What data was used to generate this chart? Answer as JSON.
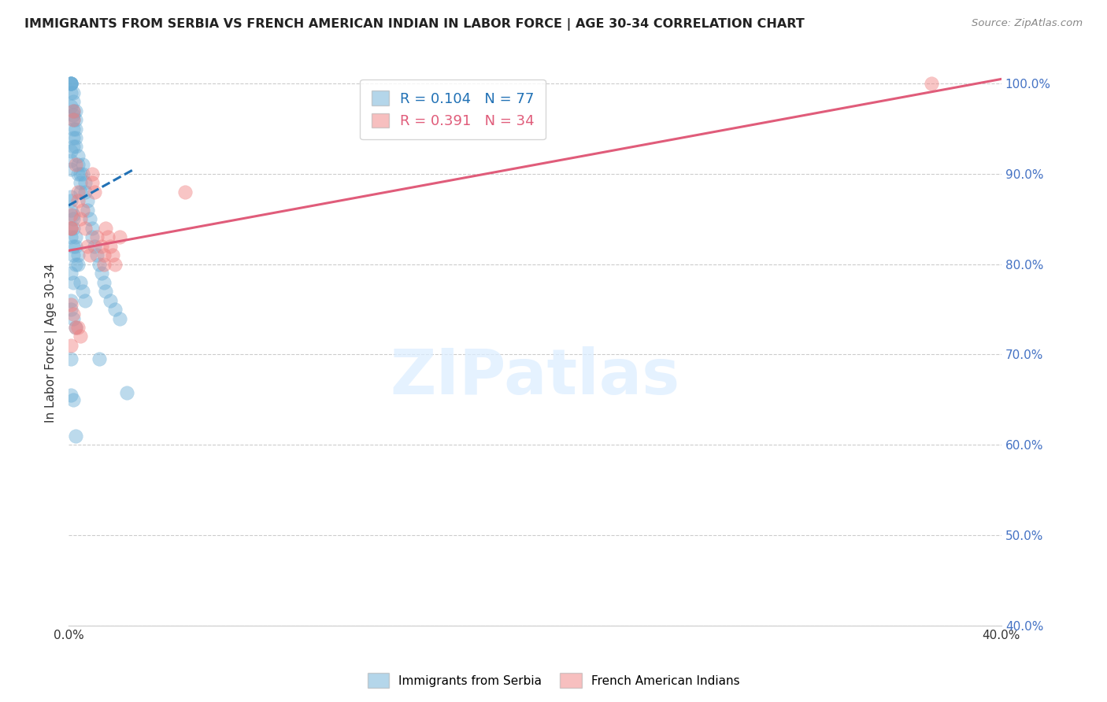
{
  "title": "IMMIGRANTS FROM SERBIA VS FRENCH AMERICAN INDIAN IN LABOR FORCE | AGE 30-34 CORRELATION CHART",
  "source": "Source: ZipAtlas.com",
  "ylabel": "In Labor Force | Age 30-34",
  "blue_label": "Immigrants from Serbia",
  "pink_label": "French American Indians",
  "blue_R": 0.104,
  "blue_N": 77,
  "pink_R": 0.391,
  "pink_N": 34,
  "blue_color": "#6baed6",
  "pink_color": "#f08080",
  "blue_line_color": "#2171b5",
  "pink_line_color": "#e05c7a",
  "xmin": 0.0,
  "xmax": 0.4,
  "ymin": 0.4,
  "ymax": 1.025,
  "blue_line_x0": 0.0,
  "blue_line_y0": 0.865,
  "blue_line_x1": 0.028,
  "blue_line_y1": 0.905,
  "pink_line_x0": 0.0,
  "pink_line_y0": 0.815,
  "pink_line_x1": 0.4,
  "pink_line_y1": 1.005,
  "watermark": "ZIPatlas",
  "ytick_color": "#4472c4",
  "grid_color": "#cccccc",
  "blue_scatter_x": [
    0.001,
    0.001,
    0.001,
    0.001,
    0.001,
    0.001,
    0.002,
    0.002,
    0.002,
    0.002,
    0.002,
    0.002,
    0.002,
    0.003,
    0.003,
    0.003,
    0.003,
    0.003,
    0.004,
    0.004,
    0.004,
    0.005,
    0.005,
    0.005,
    0.006,
    0.006,
    0.007,
    0.007,
    0.008,
    0.008,
    0.009,
    0.01,
    0.01,
    0.011,
    0.012,
    0.013,
    0.014,
    0.015,
    0.016,
    0.018,
    0.02,
    0.022,
    0.001,
    0.001,
    0.002,
    0.002,
    0.003,
    0.003,
    0.004,
    0.004,
    0.005,
    0.006,
    0.007,
    0.001,
    0.001,
    0.002,
    0.003,
    0.001,
    0.001,
    0.002,
    0.002,
    0.003,
    0.001,
    0.002,
    0.001,
    0.001,
    0.002,
    0.013,
    0.025,
    0.003,
    0.001,
    0.002,
    0.001,
    0.002,
    0.001,
    0.001,
    0.001
  ],
  "blue_scatter_y": [
    1.0,
    1.0,
    1.0,
    1.0,
    1.0,
    0.99,
    0.99,
    0.98,
    0.97,
    0.96,
    0.95,
    0.94,
    0.93,
    0.97,
    0.96,
    0.95,
    0.94,
    0.93,
    0.92,
    0.91,
    0.9,
    0.9,
    0.89,
    0.88,
    0.91,
    0.9,
    0.89,
    0.88,
    0.87,
    0.86,
    0.85,
    0.84,
    0.83,
    0.82,
    0.81,
    0.8,
    0.79,
    0.78,
    0.77,
    0.76,
    0.75,
    0.74,
    0.87,
    0.86,
    0.85,
    0.84,
    0.83,
    0.82,
    0.81,
    0.8,
    0.78,
    0.77,
    0.76,
    0.76,
    0.75,
    0.74,
    0.73,
    0.84,
    0.83,
    0.82,
    0.81,
    0.8,
    0.79,
    0.78,
    0.695,
    0.655,
    0.65,
    0.695,
    0.658,
    0.61,
    0.875,
    0.855,
    0.975,
    0.965,
    0.925,
    0.915,
    0.905
  ],
  "pink_scatter_x": [
    0.001,
    0.001,
    0.002,
    0.002,
    0.003,
    0.004,
    0.004,
    0.005,
    0.006,
    0.007,
    0.008,
    0.009,
    0.01,
    0.01,
    0.011,
    0.012,
    0.014,
    0.015,
    0.015,
    0.016,
    0.017,
    0.018,
    0.019,
    0.02,
    0.022,
    0.05,
    0.001,
    0.002,
    0.003,
    0.004,
    0.005,
    0.001,
    0.001,
    0.37
  ],
  "pink_scatter_y": [
    0.855,
    0.84,
    0.97,
    0.96,
    0.91,
    0.88,
    0.87,
    0.85,
    0.86,
    0.84,
    0.82,
    0.81,
    0.9,
    0.89,
    0.88,
    0.83,
    0.82,
    0.81,
    0.8,
    0.84,
    0.83,
    0.82,
    0.81,
    0.8,
    0.83,
    0.88,
    0.755,
    0.745,
    0.73,
    0.73,
    0.72,
    0.71,
    0.84,
    1.0
  ]
}
